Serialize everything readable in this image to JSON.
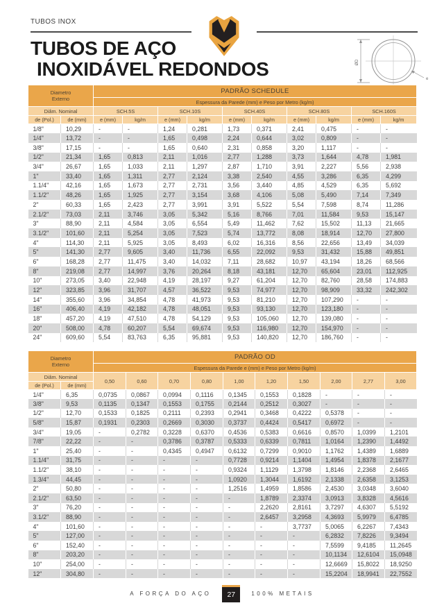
{
  "page": {
    "eyebrow": "TUBOS INOX",
    "title_line1": "TUBOS DE AÇO",
    "title_line2": "INOXIDÁVEL REDONDOS"
  },
  "colors": {
    "accent_dark": "#EAA64A",
    "accent_light": "#F7D3A0",
    "row_alt": "#D8D8D8",
    "badge_dark": "#211D1D"
  },
  "diagram": {
    "diameter_label": "ØD",
    "thickness_label": "e"
  },
  "schedule_table": {
    "title": "PADRÃO SCHEDULE",
    "subtitle": "Espessura da Parede (mm) e Peso por Metro (kg/m)",
    "corner_line1": "Diametro",
    "corner_line2": "Externo",
    "group_cells": [
      {
        "label": "Diâm. Nominal",
        "span": 2
      },
      {
        "label": "SCH.5S",
        "span": 2
      },
      {
        "label": "SCH.10S",
        "span": 2
      },
      {
        "label": "SCH.40S",
        "span": 2
      },
      {
        "label": "SCH.80S",
        "span": 2
      },
      {
        "label": "SCH.160S",
        "span": 2
      }
    ],
    "sub_cells": [
      "de (Pol.)",
      "de (mm)",
      "e (mm)",
      "kg/m",
      "e (mm)",
      "kg/m",
      "e (mm)",
      "kg/m",
      "e (mm)",
      "kg/m",
      "e (mm)",
      "kg/m"
    ],
    "rows": [
      [
        "1/8\"",
        "10,29",
        "-",
        "-",
        "1,24",
        "0,281",
        "1,73",
        "0,371",
        "2,41",
        "0,475",
        "-",
        "-"
      ],
      [
        "1/4\"",
        "13,72",
        "-",
        "-",
        "1,65",
        "0,498",
        "2,24",
        "0,644",
        "3,02",
        "0,809",
        "-",
        "-"
      ],
      [
        "3/8\"",
        "17,15",
        "-",
        "-",
        "1,65",
        "0,640",
        "2,31",
        "0,858",
        "3,20",
        "1,117",
        "-",
        "-"
      ],
      [
        "1/2\"",
        "21,34",
        "1,65",
        "0,813",
        "2,11",
        "1,016",
        "2,77",
        "1,288",
        "3,73",
        "1,644",
        "4,78",
        "1,981"
      ],
      [
        "3/4\"",
        "26,67",
        "1,65",
        "1,033",
        "2,11",
        "1,297",
        "2,87",
        "1,710",
        "3,91",
        "2,227",
        "5,56",
        "2,938"
      ],
      [
        "1\"",
        "33,40",
        "1,65",
        "1,311",
        "2,77",
        "2,124",
        "3,38",
        "2,540",
        "4,55",
        "3,286",
        "6,35",
        "4,299"
      ],
      [
        "1.1/4\"",
        "42,16",
        "1,65",
        "1,673",
        "2,77",
        "2,731",
        "3,56",
        "3,440",
        "4,85",
        "4,529",
        "6,35",
        "5,692"
      ],
      [
        "1.1/2\"",
        "48,26",
        "1,65",
        "1,925",
        "2,77",
        "3,154",
        "3,68",
        "4,106",
        "5,08",
        "5,490",
        "7,14",
        "7,349"
      ],
      [
        "2\"",
        "60,33",
        "1,65",
        "2,423",
        "2,77",
        "3,991",
        "3,91",
        "5,522",
        "5,54",
        "7,598",
        "8,74",
        "11,286"
      ],
      [
        "2.1/2\"",
        "73,03",
        "2,11",
        "3,746",
        "3,05",
        "5,342",
        "5,16",
        "8,766",
        "7,01",
        "11,584",
        "9,53",
        "15,147"
      ],
      [
        "3\"",
        "88,90",
        "2,11",
        "4,584",
        "3,05",
        "6,554",
        "5,49",
        "11,462",
        "7,62",
        "15,502",
        "11,13",
        "21,665"
      ],
      [
        "3.1/2\"",
        "101,60",
        "2,11",
        "5,254",
        "3,05",
        "7,523",
        "5,74",
        "13,772",
        "8,08",
        "18,914",
        "12,70",
        "27,800"
      ],
      [
        "4\"",
        "114,30",
        "2,11",
        "5,925",
        "3,05",
        "8,493",
        "6,02",
        "16,316",
        "8,56",
        "22,656",
        "13,49",
        "34,039"
      ],
      [
        "5\"",
        "141,30",
        "2,77",
        "9,605",
        "3,40",
        "11,736",
        "6,55",
        "22,092",
        "9,53",
        "31,432",
        "15,88",
        "49,851"
      ],
      [
        "6\"",
        "168,28",
        "2,77",
        "11,475",
        "3,40",
        "14,032",
        "7,11",
        "28,682",
        "10,97",
        "43,194",
        "18,26",
        "68,566"
      ],
      [
        "8\"",
        "219,08",
        "2,77",
        "14,997",
        "3,76",
        "20,264",
        "8,18",
        "43,181",
        "12,70",
        "65,604",
        "23,01",
        "112,925"
      ],
      [
        "10\"",
        "273,05",
        "3,40",
        "22,948",
        "4,19",
        "28,197",
        "9,27",
        "61,204",
        "12,70",
        "82,760",
        "28,58",
        "174,883"
      ],
      [
        "12\"",
        "323,85",
        "3,96",
        "31,707",
        "4,57",
        "36,522",
        "9,53",
        "74,977",
        "12,70",
        "98,909",
        "33,32",
        "242,302"
      ],
      [
        "14\"",
        "355,60",
        "3,96",
        "34,854",
        "4,78",
        "41,973",
        "9,53",
        "81,210",
        "12,70",
        "107,290",
        "-",
        "-"
      ],
      [
        "16\"",
        "406,40",
        "4,19",
        "42,182",
        "4,78",
        "48,051",
        "9,53",
        "93,130",
        "12,70",
        "123,180",
        "-",
        "-"
      ],
      [
        "18\"",
        "457,20",
        "4,19",
        "47,510",
        "4,78",
        "54,129",
        "9,53",
        "105,060",
        "12,70",
        "139,080",
        "-",
        "-"
      ],
      [
        "20\"",
        "508,00",
        "4,78",
        "60,207",
        "5,54",
        "69,674",
        "9,53",
        "116,980",
        "12,70",
        "154,970",
        "-",
        "-"
      ],
      [
        "24\"",
        "609,60",
        "5,54",
        "83,763",
        "6,35",
        "95,881",
        "9,53",
        "140,820",
        "12,70",
        "186,760",
        "-",
        "-"
      ]
    ]
  },
  "od_table": {
    "title": "PADRÃO OD",
    "subtitle": "Espessura da Parede e (mm) e Peso por Metro (kg/m)",
    "corner_line1": "Diametro",
    "corner_line2": "Externo",
    "group_cells": [
      {
        "label": "Diâm. Nominal",
        "span": 2
      },
      {
        "label": "0,50",
        "rowspan": 2
      },
      {
        "label": "0,60",
        "rowspan": 2
      },
      {
        "label": "0,70",
        "rowspan": 2
      },
      {
        "label": "0,80",
        "rowspan": 2
      },
      {
        "label": "1,00",
        "rowspan": 2
      },
      {
        "label": "1,20",
        "rowspan": 2
      },
      {
        "label": "1,50",
        "rowspan": 2
      },
      {
        "label": "2,00",
        "rowspan": 2
      },
      {
        "label": "2,77",
        "rowspan": 2
      },
      {
        "label": "3,00",
        "rowspan": 2
      }
    ],
    "sub_cells": [
      "de (Pol.)",
      "de (mm)"
    ],
    "rows": [
      [
        "1/4\"",
        "6,35",
        "0,0735",
        "0,0867",
        "0,0994",
        "0,1116",
        "0,1345",
        "0,1553",
        "0,1828",
        "-",
        "-",
        "-"
      ],
      [
        "3/8\"",
        "9,53",
        "0,1135",
        "0,1347",
        "0,1553",
        "0,1755",
        "0,2144",
        "0,2512",
        "0,3027",
        "-",
        "-",
        "-"
      ],
      [
        "1/2\"",
        "12,70",
        "0,1533",
        "0,1825",
        "0,2111",
        "0,2393",
        "0,2941",
        "0,3468",
        "0,4222",
        "0,5378",
        "-",
        "-"
      ],
      [
        "5/8\"",
        "15,87",
        "0,1931",
        "0,2303",
        "0,2669",
        "0,3030",
        "0,3737",
        "0,4424",
        "0,5417",
        "0,6972",
        "-",
        "-"
      ],
      [
        "3/4\"",
        "19,05",
        "-",
        "0,2782",
        "0,3228",
        "0,6370",
        "0,4536",
        "0,5383",
        "0,6616",
        "0,8570",
        "1,0399",
        "1,2101"
      ],
      [
        "7/8\"",
        "22,22",
        "-",
        "-",
        "0,3786",
        "0,3787",
        "0,5333",
        "0,6339",
        "0,7811",
        "1,0164",
        "1,2390",
        "1,4492"
      ],
      [
        "1\"",
        "25,40",
        "-",
        "-",
        "0,4345",
        "0,4947",
        "0,6132",
        "0,7299",
        "0,9010",
        "1,1762",
        "1,4389",
        "1,6889"
      ],
      [
        "1.1/4\"",
        "31,75",
        "-",
        "-",
        "-",
        "-",
        "0,7728",
        "0,9214",
        "1,1404",
        "1,4954",
        "1,8378",
        "2,1677"
      ],
      [
        "1.1/2\"",
        "38,10",
        "-",
        "-",
        "-",
        "-",
        "0,9324",
        "1,1129",
        "1,3798",
        "1,8146",
        "2,2368",
        "2,6465"
      ],
      [
        "1.3/4\"",
        "44,45",
        "-",
        "-",
        "-",
        "-",
        "1,0920",
        "1,3044",
        "1,6192",
        "2,1338",
        "2,6358",
        "3,1253"
      ],
      [
        "2\"",
        "50,80",
        "-",
        "-",
        "-",
        "-",
        "1,2516",
        "1,4959",
        "1,8586",
        "2,4530",
        "3,0348",
        "3,6040"
      ],
      [
        "2.1/2\"",
        "63,50",
        "-",
        "-",
        "-",
        "-",
        "-",
        "1,8789",
        "2,3374",
        "3,0913",
        "3,8328",
        "4,5616"
      ],
      [
        "3\"",
        "76,20",
        "-",
        "-",
        "-",
        "-",
        "-",
        "2,2620",
        "2,8161",
        "3,7297",
        "4,6307",
        "5,5192"
      ],
      [
        "3.1/2\"",
        "88,90",
        "-",
        "-",
        "-",
        "-",
        "-",
        "2,6457",
        "3,2958",
        "4,3693",
        "5,9979",
        "6,4785"
      ],
      [
        "4\"",
        "101,60",
        "-",
        "-",
        "-",
        "-",
        "-",
        "-",
        "3,7737",
        "5,0065",
        "6,2267",
        "7,4343"
      ],
      [
        "5\"",
        "127,00",
        "-",
        "-",
        "-",
        "-",
        "-",
        "-",
        "-",
        "6,2832",
        "7,8226",
        "9,3494"
      ],
      [
        "6\"",
        "152,40",
        "-",
        "-",
        "-",
        "-",
        "-",
        "-",
        "-",
        "7,5599",
        "9,4185",
        "11,2645"
      ],
      [
        "8\"",
        "203,20",
        "-",
        "-",
        "-",
        "-",
        "-",
        "-",
        "-",
        "10,1134",
        "12,6104",
        "15,0948"
      ],
      [
        "10\"",
        "254,00",
        "-",
        "-",
        "-",
        "-",
        "-",
        "-",
        "-",
        "12,6669",
        "15,8022",
        "18,9250"
      ],
      [
        "12\"",
        "304,80",
        "-",
        "-",
        "-",
        "-",
        "-",
        "-",
        "-",
        "15,2204",
        "18,9941",
        "22,7552"
      ]
    ]
  },
  "footer": {
    "tagline_left": "A FORÇA DO AÇO",
    "page_number": "27",
    "tagline_right": "100% METAIS"
  }
}
